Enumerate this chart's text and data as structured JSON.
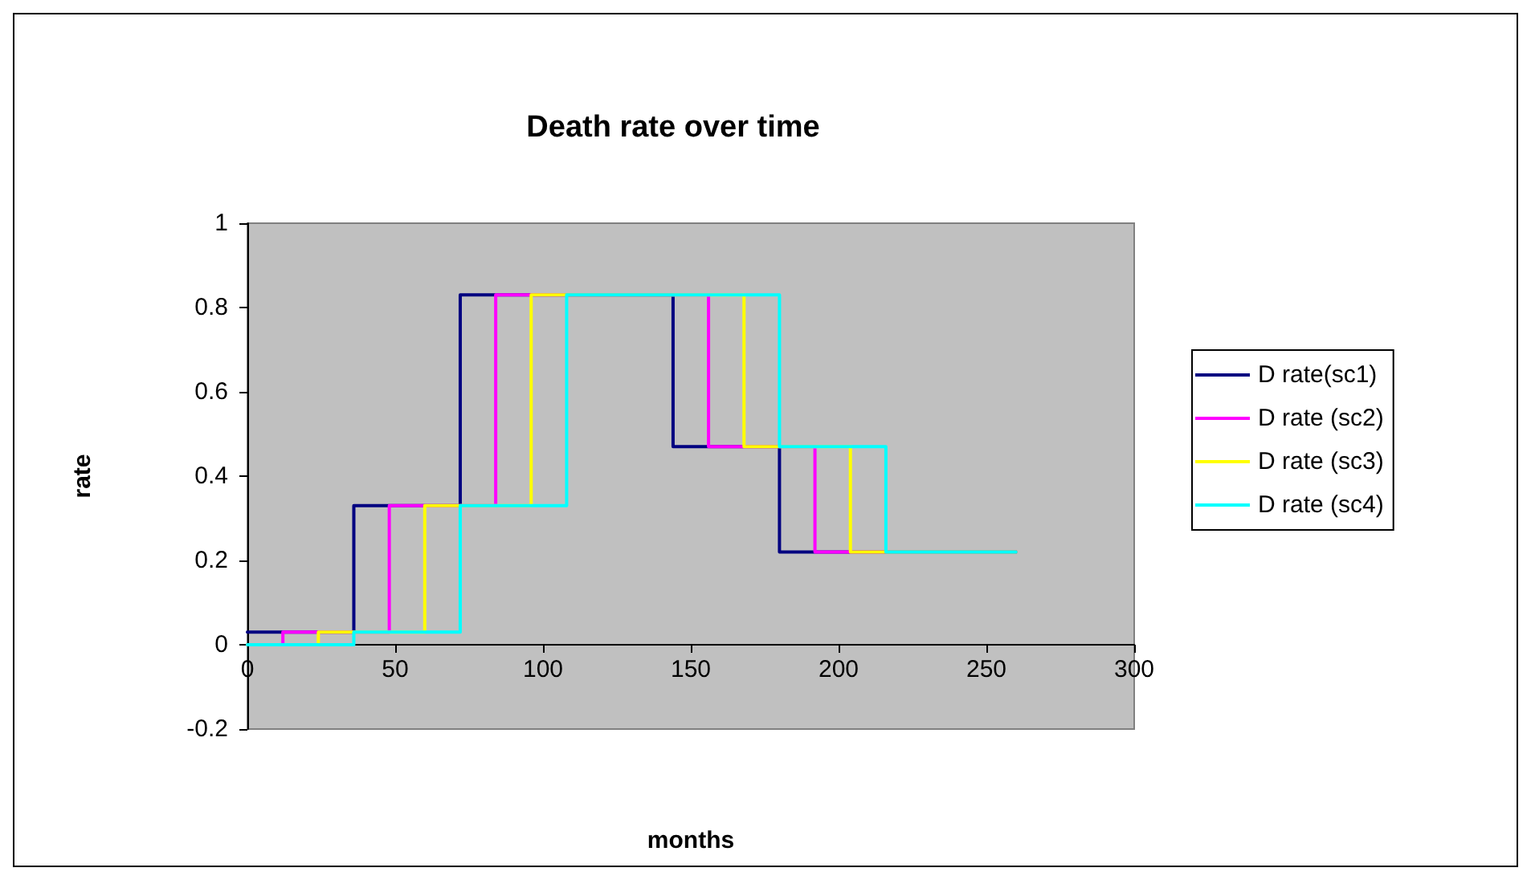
{
  "chart_data": {
    "type": "step",
    "title": "Death rate over time",
    "xlabel": "months",
    "ylabel": "rate",
    "xlim": [
      0,
      300
    ],
    "xticks": [
      0,
      50,
      100,
      150,
      200,
      250,
      300
    ],
    "ylim": [
      -0.2,
      1
    ],
    "yticks": [
      -0.2,
      0,
      0.2,
      0.4,
      0.6,
      0.8,
      1
    ],
    "legend": "right",
    "marker": "none",
    "line_style": "solid",
    "series": [
      {
        "name": "D rate(sc1)",
        "color": "#000080",
        "x": [
          0,
          36,
          72,
          144,
          180,
          260
        ],
        "values": [
          0.03,
          0.33,
          0.83,
          0.47,
          0.22,
          0.22
        ]
      },
      {
        "name": "D rate (sc2)",
        "color": "#ff00ff",
        "x": [
          0,
          12,
          48,
          84,
          156,
          192,
          260
        ],
        "values": [
          0,
          0.03,
          0.33,
          0.83,
          0.47,
          0.22,
          0.22
        ]
      },
      {
        "name": "D rate (sc3)",
        "color": "#ffff00",
        "x": [
          0,
          24,
          60,
          96,
          168,
          204,
          260
        ],
        "values": [
          0,
          0.03,
          0.33,
          0.83,
          0.47,
          0.22,
          0.22
        ]
      },
      {
        "name": "D rate (sc4)",
        "color": "#00ffff",
        "x": [
          0,
          36,
          72,
          108,
          180,
          216,
          260
        ],
        "values": [
          0,
          0.03,
          0.33,
          0.83,
          0.47,
          0.22,
          0.22
        ]
      }
    ]
  }
}
